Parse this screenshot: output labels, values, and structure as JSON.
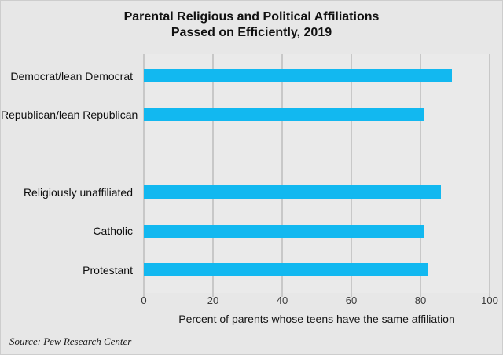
{
  "title": {
    "line1": "Parental Religious and Political Affiliations",
    "line2": "Passed on Efficiently, 2019"
  },
  "source_text": "Source: Pew Research Center",
  "chart_data": {
    "type": "bar",
    "orientation": "horizontal",
    "title": "Parental Religious and Political Affiliations Passed on Efficiently, 2019",
    "categories": [
      "Democrat/lean Democrat",
      "Republican/lean Republican",
      "",
      "Religiously unaffiliated",
      "Catholic",
      "Protestant"
    ],
    "values": [
      89,
      81,
      null,
      86,
      81,
      82
    ],
    "xlabel": "Percent of parents whose teens have the same affiliation",
    "xlim": [
      0,
      100
    ],
    "xticks": [
      0,
      20,
      40,
      60,
      80,
      100
    ],
    "grid": true,
    "legend": false,
    "source": "Source: Pew Research Center"
  },
  "colors": {
    "background": "#e7e7e7",
    "plot_background": "#eaeaea",
    "gridline": "#c8c8c8",
    "bar": "#12b8f0",
    "border": "#cdcdcd"
  }
}
